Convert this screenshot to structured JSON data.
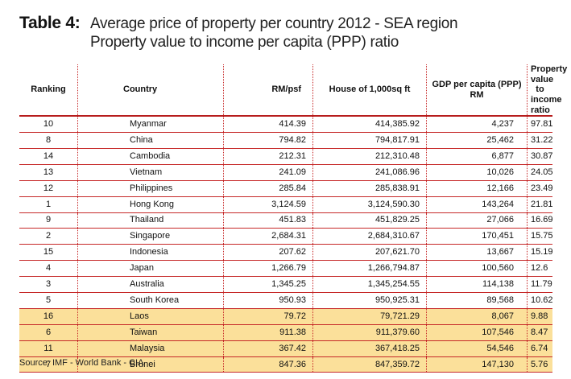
{
  "title": {
    "table_number": "Table 4:",
    "line1": "Average price of property per country 2012 - SEA region",
    "line2": "Property value to income per capita (PPP) ratio"
  },
  "headers": {
    "ranking": "Ranking",
    "country": "Country",
    "rm_psf": "RM/psf",
    "house": "House of 1,000sq ft",
    "gdp": "GDP per capita (PPP) RM",
    "ratio": "Property value to income ratio"
  },
  "rows": [
    {
      "rank": "10",
      "country": "Myanmar",
      "rm_psf": "414.39",
      "house": "414,385.92",
      "gdp": "4,237",
      "ratio": "97.81",
      "highlight": false
    },
    {
      "rank": "8",
      "country": "China",
      "rm_psf": "794.82",
      "house": "794,817.91",
      "gdp": "25,462",
      "ratio": "31.22",
      "highlight": false
    },
    {
      "rank": "14",
      "country": "Cambodia",
      "rm_psf": "212.31",
      "house": "212,310.48",
      "gdp": "6,877",
      "ratio": "30.87",
      "highlight": false
    },
    {
      "rank": "13",
      "country": "Vietnam",
      "rm_psf": "241.09",
      "house": "241,086.96",
      "gdp": "10,026",
      "ratio": "24.05",
      "highlight": false
    },
    {
      "rank": "12",
      "country": "Philippines",
      "rm_psf": "285.84",
      "house": "285,838.91",
      "gdp": "12,166",
      "ratio": "23.49",
      "highlight": false
    },
    {
      "rank": "1",
      "country": "Hong Kong",
      "rm_psf": "3,124.59",
      "house": "3,124,590.30",
      "gdp": "143,264",
      "ratio": "21.81",
      "highlight": false
    },
    {
      "rank": "9",
      "country": "Thailand",
      "rm_psf": "451.83",
      "house": "451,829.25",
      "gdp": "27,066",
      "ratio": "16.69",
      "highlight": false
    },
    {
      "rank": "2",
      "country": "Singapore",
      "rm_psf": "2,684.31",
      "house": "2,684,310.67",
      "gdp": "170,451",
      "ratio": "15.75",
      "highlight": false
    },
    {
      "rank": "15",
      "country": "Indonesia",
      "rm_psf": "207.62",
      "house": "207,621.70",
      "gdp": "13,667",
      "ratio": "15.19",
      "highlight": false
    },
    {
      "rank": "4",
      "country": "Japan",
      "rm_psf": "1,266.79",
      "house": "1,266,794.87",
      "gdp": "100,560",
      "ratio": "12.6",
      "highlight": false
    },
    {
      "rank": "3",
      "country": "Australia",
      "rm_psf": "1,345.25",
      "house": "1,345,254.55",
      "gdp": "114,138",
      "ratio": "11.79",
      "highlight": false
    },
    {
      "rank": "5",
      "country": "South Korea",
      "rm_psf": "950.93",
      "house": "950,925.31",
      "gdp": "89,568",
      "ratio": "10.62",
      "highlight": false
    },
    {
      "rank": "16",
      "country": "Laos",
      "rm_psf": "79.72",
      "house": "79,721.29",
      "gdp": "8,067",
      "ratio": "9.88",
      "highlight": true
    },
    {
      "rank": "6",
      "country": "Taiwan",
      "rm_psf": "911.38",
      "house": "911,379.60",
      "gdp": "107,546",
      "ratio": "8.47",
      "highlight": true
    },
    {
      "rank": "11",
      "country": "Malaysia",
      "rm_psf": "367.42",
      "house": "367,418.25",
      "gdp": "54,546",
      "ratio": "6.74",
      "highlight": true
    },
    {
      "rank": "7",
      "country": "Brunei",
      "rm_psf": "847.36",
      "house": "847,359.72",
      "gdp": "147,130",
      "ratio": "5.76",
      "highlight": true
    }
  ],
  "source": "Source: IMF - World Bank - CIA",
  "colors": {
    "rule": "#c62828",
    "highlight": "#fbe09a"
  }
}
